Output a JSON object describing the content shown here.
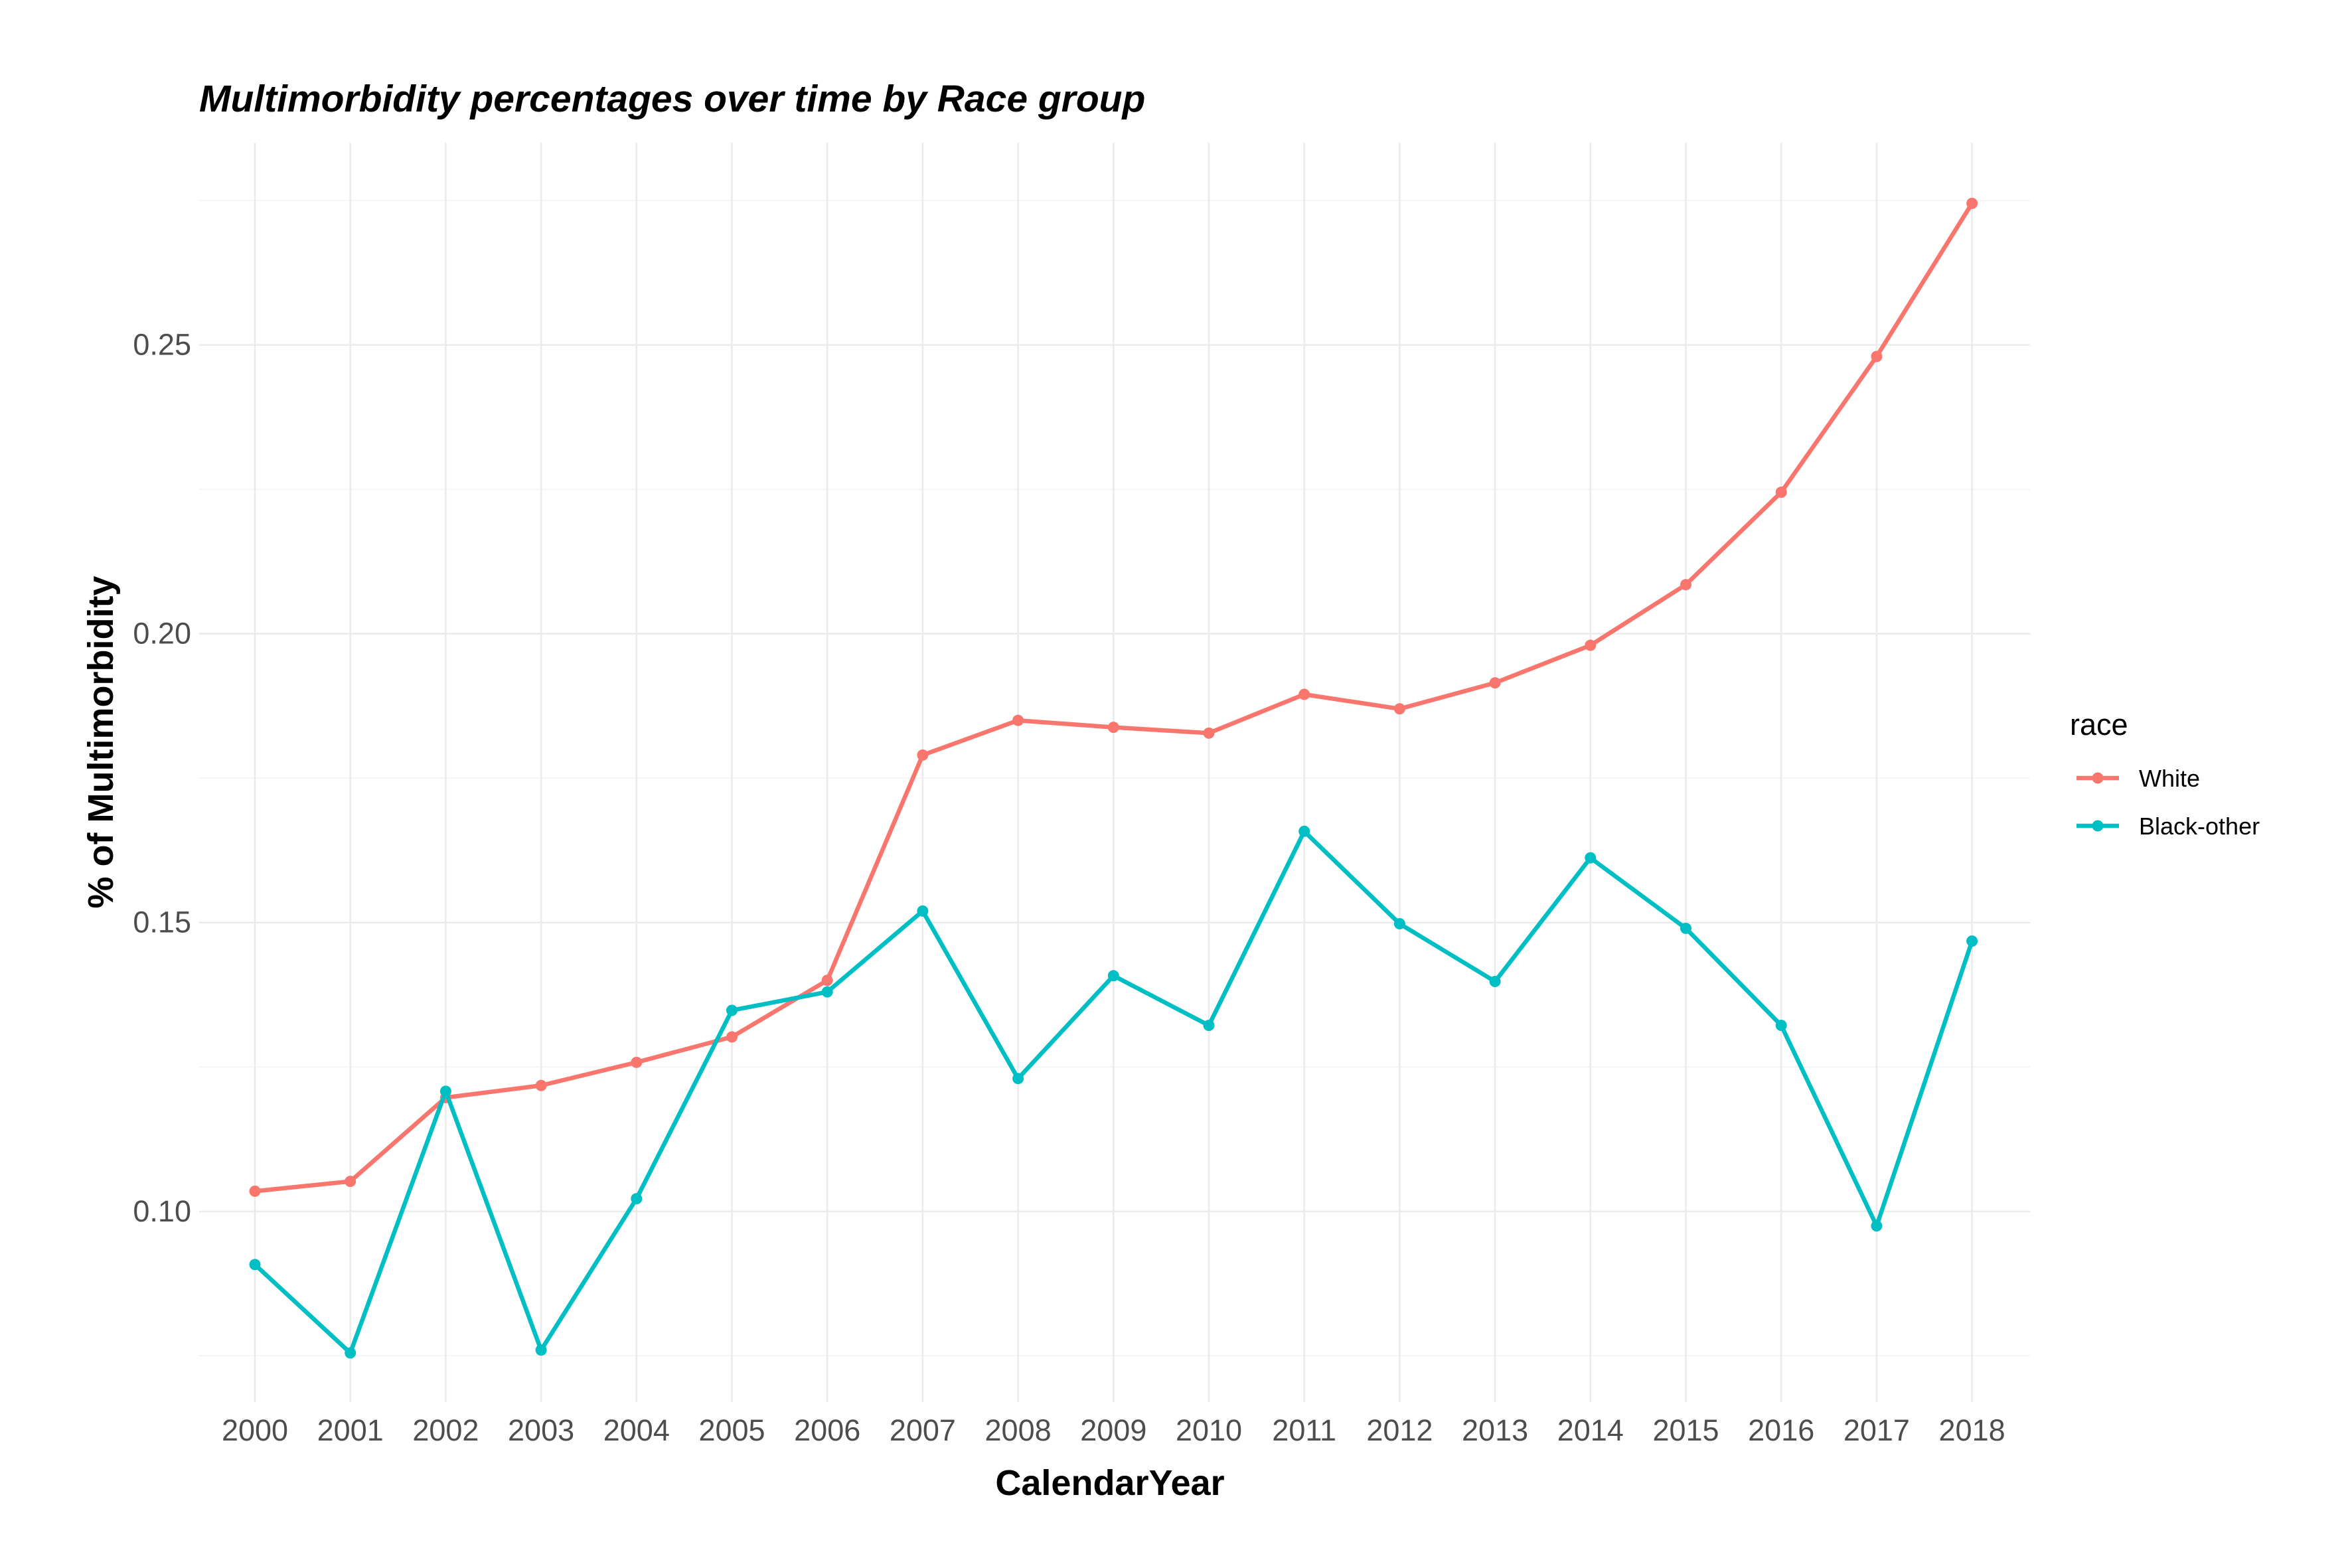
{
  "chart_data": {
    "type": "line",
    "title": "Multimorbidity percentages over time by Race group",
    "xlabel": "CalendarYear",
    "ylabel": "% of Multimorbidity",
    "x": [
      "2000",
      "2001",
      "2002",
      "2003",
      "2004",
      "2005",
      "2006",
      "2007",
      "2008",
      "2009",
      "2010",
      "2011",
      "2012",
      "2013",
      "2014",
      "2015",
      "2016",
      "2017",
      "2018"
    ],
    "ylim": [
      0.067,
      0.285
    ],
    "yticks": [
      0.1,
      0.15,
      0.2,
      0.25
    ],
    "ytick_labels": [
      "0.10",
      "0.15",
      "0.20",
      "0.25"
    ],
    "grid": true,
    "legend": {
      "title": "race",
      "position": "right"
    },
    "series": [
      {
        "name": "White",
        "color": "#F8766D",
        "values": [
          0.1035,
          0.1052,
          0.1197,
          0.1218,
          0.1258,
          0.1302,
          0.14,
          0.179,
          0.185,
          0.1838,
          0.1828,
          0.1895,
          0.187,
          0.1915,
          0.198,
          0.2085,
          0.2245,
          0.248,
          0.2745
        ]
      },
      {
        "name": "Black-other",
        "color": "#00BFC4",
        "values": [
          0.0908,
          0.0755,
          0.1208,
          0.076,
          0.1022,
          0.1348,
          0.138,
          0.152,
          0.123,
          0.1408,
          0.1322,
          0.1658,
          0.1498,
          0.1398,
          0.1612,
          0.149,
          0.1322,
          0.0975,
          0.1468
        ]
      }
    ]
  }
}
